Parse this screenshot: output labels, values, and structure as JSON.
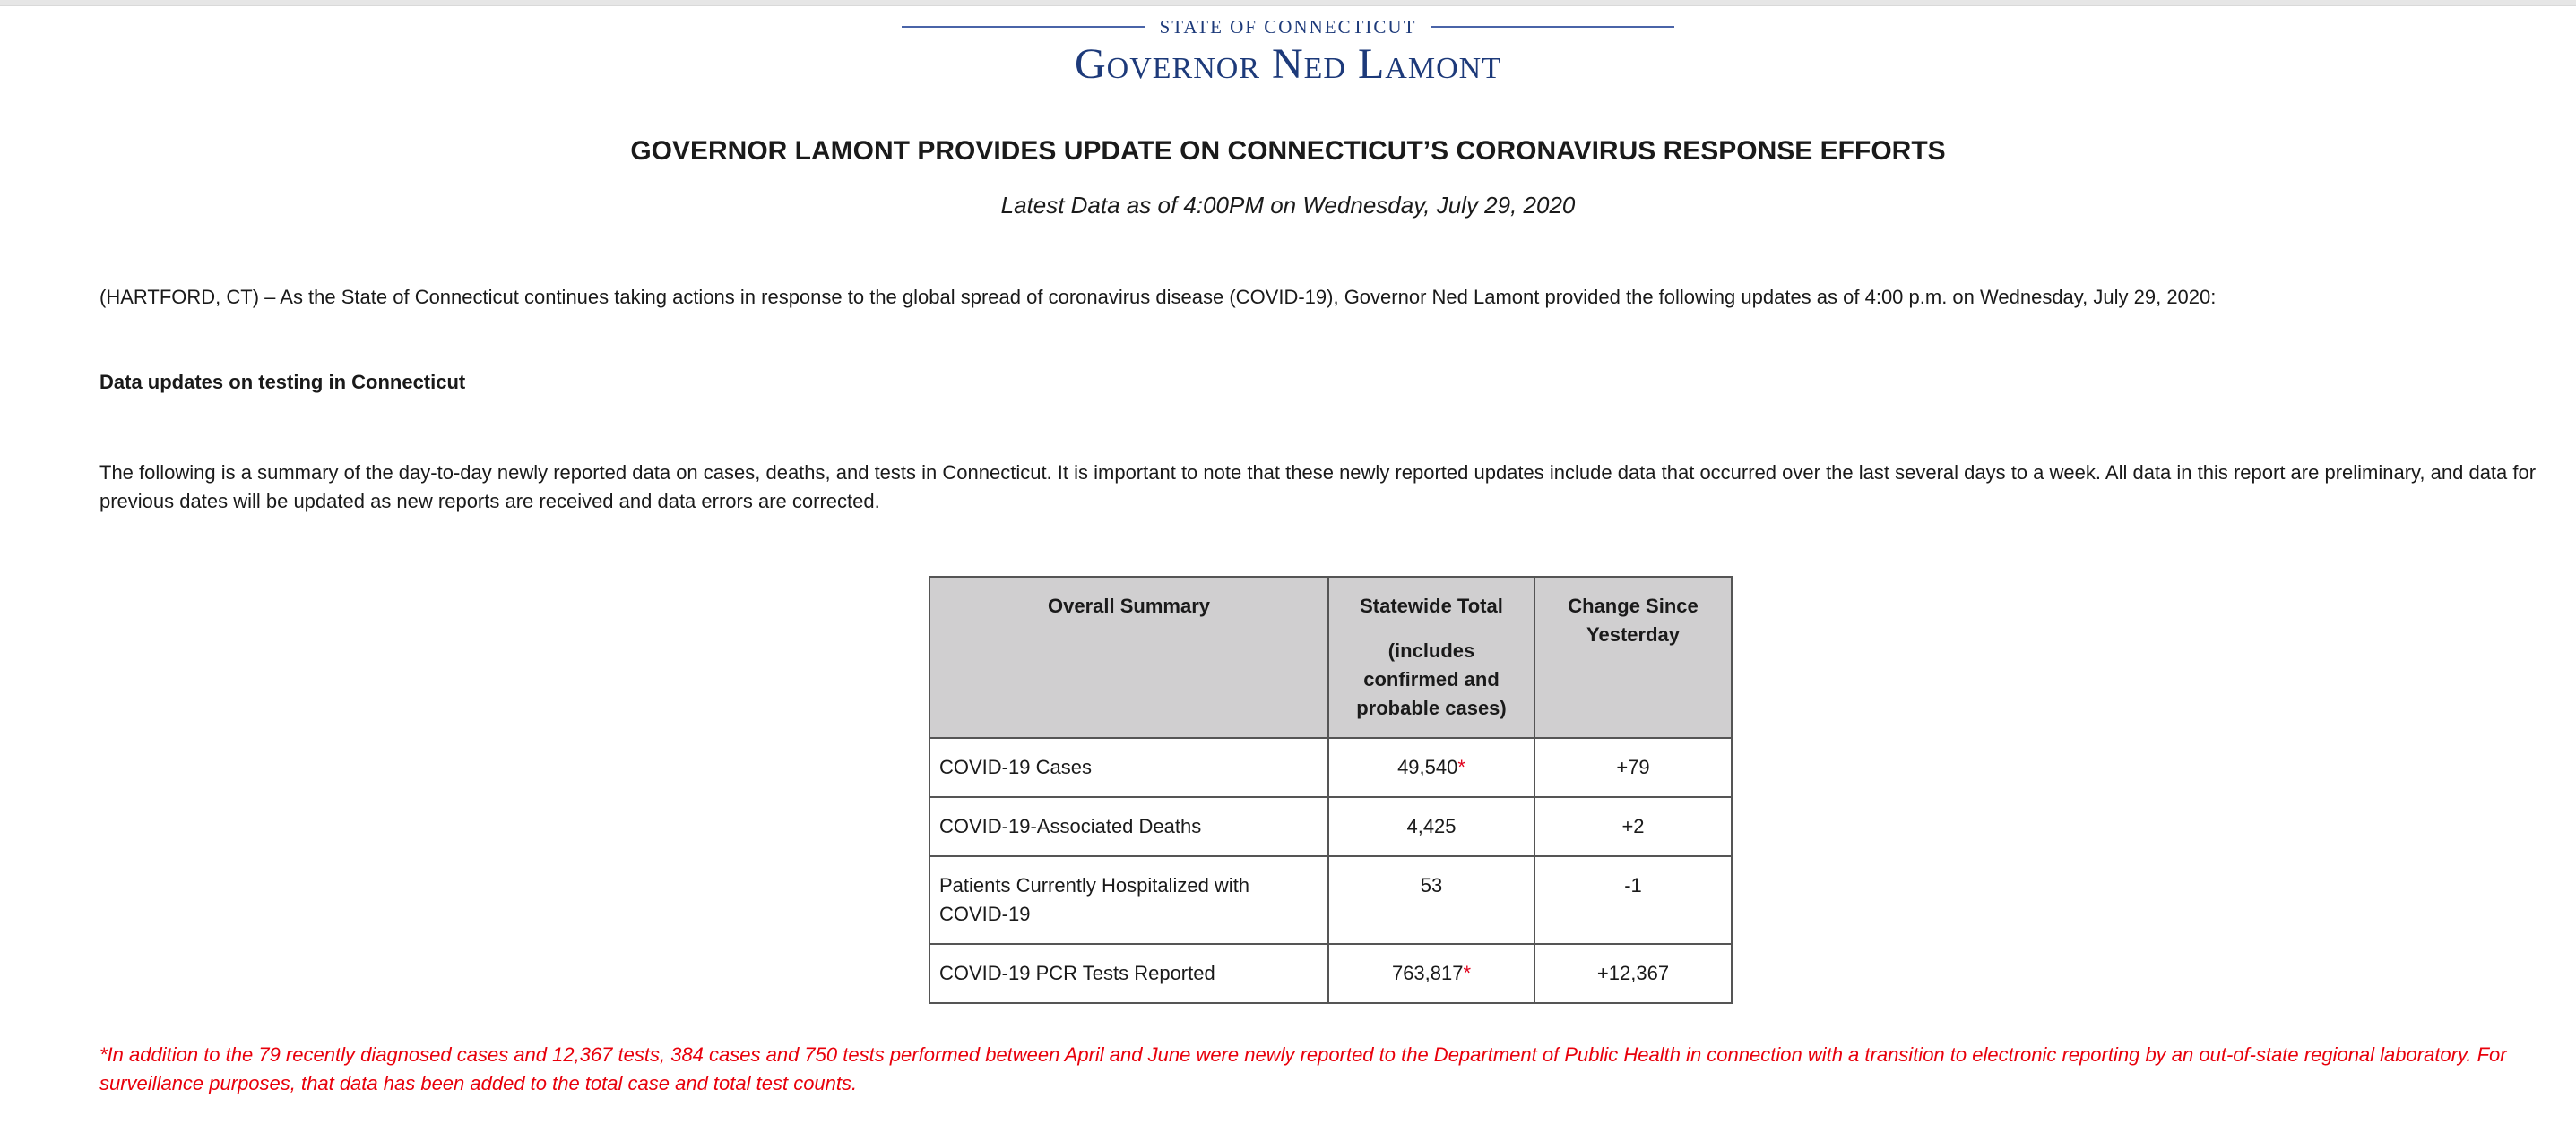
{
  "masthead": {
    "state": "STATE OF CONNECTICUT",
    "governor": "Governor Ned Lamont"
  },
  "headline": "GOVERNOR LAMONT PROVIDES UPDATE ON CONNECTICUT’S CORONAVIRUS RESPONSE EFFORTS",
  "subheadline": "Latest Data as of 4:00PM on Wednesday, July 29, 2020",
  "intro": "(HARTFORD, CT) – As the State of Connecticut continues taking actions in response to the global spread of coronavirus disease (COVID-19), Governor Ned Lamont provided the following updates as of 4:00 p.m. on Wednesday, July 29, 2020:",
  "section_title": "Data updates on testing in Connecticut",
  "summary_paragraph": "The following is a summary of the day-to-day newly reported data on cases, deaths, and tests in Connecticut. It is important to note that these newly reported updates include data that occurred over the last several days to a week. All data in this report are preliminary, and data for previous dates will be updated as new reports are received and data errors are corrected.",
  "table": {
    "headers": {
      "col1": "Overall Summary",
      "col2_title": "Statewide Total",
      "col2_note": "(includes confirmed and probable cases)",
      "col3": "Change Since Yesterday"
    },
    "rows": [
      {
        "label": "COVID-19 Cases",
        "total": "49,540",
        "mark": "*",
        "change": "+79"
      },
      {
        "label": "COVID-19-Associated Deaths",
        "total": "4,425",
        "mark": "",
        "change": "+2"
      },
      {
        "label": "Patients Currently Hospitalized with COVID-19",
        "total": "53",
        "mark": "",
        "change": "-1"
      },
      {
        "label": "COVID-19 PCR Tests Reported",
        "total": "763,817",
        "mark": "*",
        "change": "+12,367"
      }
    ]
  },
  "footnote": "*In addition to the 79 recently diagnosed cases and 12,367 tests, 384 cases and 750 tests performed between April and June were newly reported to the Department of Public Health in connection with a transition to electronic reporting by an out-of-state regional laboratory. For surveillance purposes, that data has been added to the total case and total test counts.",
  "colors": {
    "brand_navy": "#1d3a7a",
    "header_gray": "#d0cfd0",
    "footnote_red": "#e8000b"
  }
}
